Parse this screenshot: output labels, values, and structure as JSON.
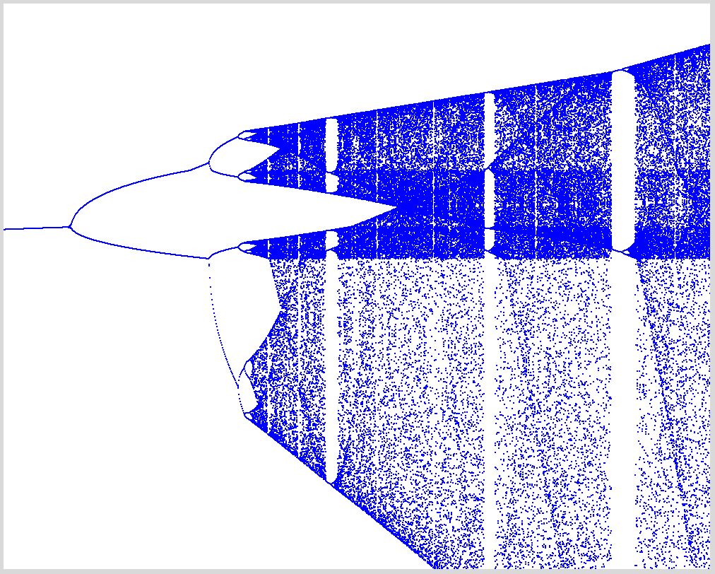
{
  "image": {
    "type": "bifurcation",
    "color": "#0000ff"
  }
}
